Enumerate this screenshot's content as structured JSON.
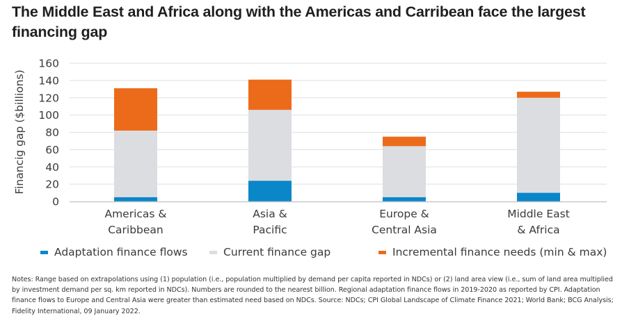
{
  "title": "The Middle East and Africa along with the Americas and Carribean face the largest financing gap",
  "chart_data": {
    "type": "bar",
    "stacked": true,
    "title": "The Middle East and Africa along with the Americas and Carribean face the largest financing gap",
    "xlabel": "",
    "ylabel": "Financig gap ($billions)",
    "ylim": [
      0,
      160
    ],
    "yticks": [
      0,
      20,
      40,
      60,
      80,
      100,
      120,
      140,
      160
    ],
    "grid": true,
    "legend_position": "bottom",
    "categories": [
      [
        "Americas &",
        "Caribbean"
      ],
      [
        "Asia &",
        "Pacific"
      ],
      [
        "Europe &",
        "Central Asia"
      ],
      [
        "Middle East",
        "& Africa"
      ]
    ],
    "series": [
      {
        "name": "Adaptation finance flows",
        "color": "#0a87c9",
        "values": [
          5,
          24,
          5,
          10
        ]
      },
      {
        "name": "Current finance gap",
        "color": "#dcdde1",
        "values": [
          77,
          82,
          59,
          110
        ]
      },
      {
        "name": "Incremental finance needs (min & max)",
        "color": "#ec6b1b",
        "values": [
          49,
          35,
          11,
          7
        ]
      }
    ],
    "totals": [
      131,
      141,
      75,
      127
    ]
  },
  "notes": "Notes: Range based on extrapolations using (1) population (i.e., population multiplied by demand per capita reported in NDCs) or (2) land area view (i.e., sum of land area multiplied by investment demand per sq. km reported in NDCs). Numbers are rounded to the nearest billion. Regional adaptation finance flows in 2019-2020 as reported by CPI. Adaptation finance flows to Europe and Central Asia were greater than estimated need based on NDCs. Source: NDCs; CPI Global Landscape of Climate Finance 2021; World Bank; BCG Analysis; Fidelity International, 09 January 2022.",
  "colors": {
    "gridline": "#e4e5e8",
    "axis": "#c8c9cc",
    "text": "#3a3a3a"
  }
}
